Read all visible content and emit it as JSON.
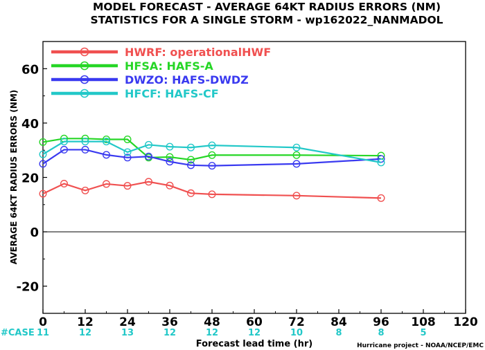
{
  "chart_data": {
    "type": "line",
    "title": "MODEL FORECAST - AVERAGE 64KT RADIUS ERRORS (NM)",
    "subtitle": "STATISTICS FOR A SINGLE STORM - wp162022_NANMADOL",
    "xlabel": "Forecast lead time (hr)",
    "ylabel": "AVERAGE 64KT RADIUS ERRORS (NM)",
    "xlim": [
      0,
      120
    ],
    "ylim": [
      -30,
      70
    ],
    "xticks": [
      "0",
      "12",
      "24",
      "36",
      "48",
      "60",
      "72",
      "84",
      "96",
      "108",
      "120"
    ],
    "yticks": [
      "-20",
      "0",
      "20",
      "40",
      "60"
    ],
    "legend_position": "top-left",
    "grid": false,
    "zero_line": true,
    "series": [
      {
        "name": "HWRF: operationalHWF",
        "color": "#f05050",
        "x": [
          0,
          6,
          12,
          18,
          24,
          30,
          36,
          42,
          48,
          72,
          96
        ],
        "y": [
          14,
          17.7,
          15.2,
          17.6,
          16.9,
          18.4,
          17,
          14.2,
          13.8,
          13.3,
          12.4
        ]
      },
      {
        "name": "HFSA: HAFS-A",
        "color": "#26d626",
        "x": [
          0,
          6,
          12,
          18,
          24,
          30,
          36,
          42,
          48,
          72,
          96
        ],
        "y": [
          33,
          34.3,
          34.3,
          34,
          34,
          27.3,
          27.5,
          26.5,
          28.2,
          28.2,
          28
        ]
      },
      {
        "name": "DWZO: HAFS-DWDZ",
        "color": "#3a3af0",
        "x": [
          0,
          6,
          12,
          18,
          24,
          30,
          36,
          42,
          48,
          72,
          96
        ],
        "y": [
          25,
          30.2,
          30.2,
          28.3,
          27.3,
          27.7,
          25.8,
          24.5,
          24.3,
          25,
          26.8
        ]
      },
      {
        "name": "HFCF: HAFS-CF",
        "color": "#22c8c8",
        "x": [
          0,
          6,
          12,
          18,
          24,
          30,
          36,
          42,
          48,
          72,
          96
        ],
        "y": [
          28.5,
          33.2,
          33.2,
          33.2,
          29.3,
          32,
          31.3,
          31,
          31.8,
          31,
          25.5
        ]
      }
    ],
    "cases": {
      "label": "#CASE",
      "x": [
        0,
        12,
        24,
        36,
        48,
        60,
        72,
        84,
        96,
        108
      ],
      "values": [
        "11",
        "12",
        "13",
        "12",
        "12",
        "12",
        "10",
        "8",
        "8",
        "5"
      ]
    },
    "credit": "Hurricane project - NOAA/NCEP/EMC"
  }
}
